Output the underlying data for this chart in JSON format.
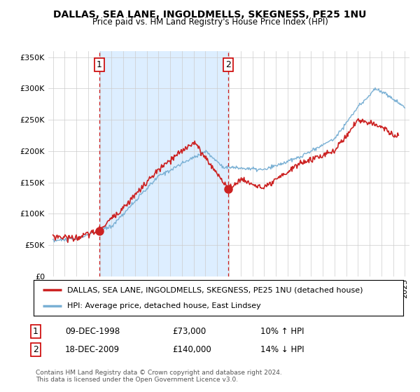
{
  "title": "DALLAS, SEA LANE, INGOLDMELLS, SKEGNESS, PE25 1NU",
  "subtitle": "Price paid vs. HM Land Registry's House Price Index (HPI)",
  "red_label": "DALLAS, SEA LANE, INGOLDMELLS, SKEGNESS, PE25 1NU (detached house)",
  "blue_label": "HPI: Average price, detached house, East Lindsey",
  "footnote": "Contains HM Land Registry data © Crown copyright and database right 2024.\nThis data is licensed under the Open Government Licence v3.0.",
  "annotation1_date": "09-DEC-1998",
  "annotation1_price": "£73,000",
  "annotation1_hpi": "10% ↑ HPI",
  "annotation2_date": "18-DEC-2009",
  "annotation2_price": "£140,000",
  "annotation2_hpi": "14% ↓ HPI",
  "red_color": "#cc2222",
  "blue_color": "#7ab0d4",
  "shade_color": "#ddeeff",
  "background_color": "#ffffff",
  "grid_color": "#cccccc",
  "ylim": [
    0,
    360000
  ],
  "yticks": [
    0,
    50000,
    100000,
    150000,
    200000,
    250000,
    300000,
    350000
  ],
  "vline1_x": 1998.95,
  "vline2_x": 2009.96,
  "point1_x": 1998.95,
  "point1_y": 73000,
  "point2_x": 2009.96,
  "point2_y": 140000,
  "xlim_left": 1994.6,
  "xlim_right": 2025.4
}
